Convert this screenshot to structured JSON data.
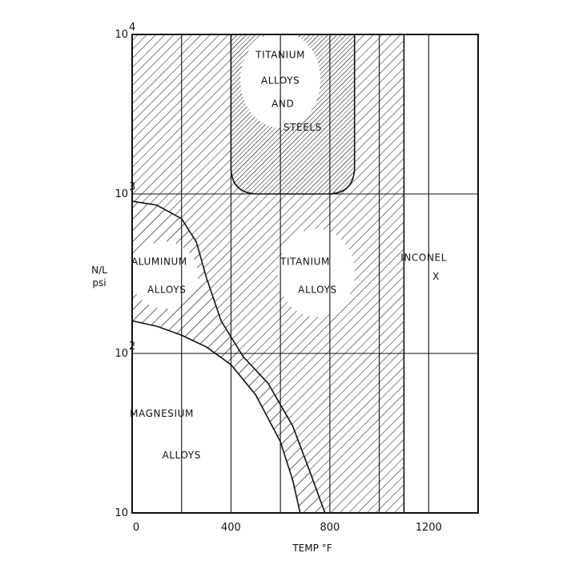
{
  "chart_data": {
    "type": "area",
    "xlabel": "TEMP °F",
    "ylabel_lines": [
      "N/L",
      "psi"
    ],
    "xlim": [
      0,
      1400
    ],
    "ylim": [
      10,
      10000
    ],
    "yscale": "log",
    "grid": true,
    "x_ticks": [
      {
        "value": 0,
        "label": "0"
      },
      {
        "value": 400,
        "label": "400"
      },
      {
        "value": 800,
        "label": "800"
      },
      {
        "value": 1200,
        "label": "1200"
      }
    ],
    "y_ticks": [
      {
        "value": 10,
        "base": "10",
        "exp": ""
      },
      {
        "value": 100,
        "base": "10",
        "exp": "2"
      },
      {
        "value": 1000,
        "base": "10",
        "exp": "3"
      },
      {
        "value": 10000,
        "base": "10",
        "exp": "4"
      }
    ],
    "x_gridlines": [
      200,
      400,
      600,
      800,
      1000,
      1100,
      1200
    ],
    "regions": [
      {
        "key": "magnesium",
        "label_lines": [
          "MAGNESIUM",
          "ALLOYS"
        ],
        "label_at": [
          [
            120,
            40
          ],
          [
            200,
            22
          ]
        ],
        "boundary": [
          [
            0,
            160
          ],
          [
            100,
            148
          ],
          [
            200,
            130
          ],
          [
            300,
            110
          ],
          [
            400,
            85
          ],
          [
            500,
            55
          ],
          [
            600,
            28
          ],
          [
            650,
            16
          ],
          [
            680,
            10
          ]
        ]
      },
      {
        "key": "aluminum",
        "label_lines": [
          "ALUMINUM",
          "ALLOYS"
        ],
        "label_at": [
          [
            110,
            360
          ],
          [
            140,
            240
          ]
        ],
        "boundary": [
          [
            0,
            900
          ],
          [
            100,
            850
          ],
          [
            200,
            700
          ],
          [
            260,
            500
          ],
          [
            300,
            300
          ],
          [
            360,
            160
          ],
          [
            450,
            95
          ],
          [
            550,
            65
          ],
          [
            650,
            35
          ],
          [
            720,
            18
          ],
          [
            780,
            10
          ]
        ]
      },
      {
        "key": "titanium",
        "label_lines": [
          "TITANIUM",
          "ALLOYS"
        ],
        "label_at": [
          [
            700,
            360
          ],
          [
            750,
            240
          ]
        ],
        "x_max": 1100
      },
      {
        "key": "titanium_steels",
        "label_lines": [
          "TITANIUM",
          "ALLOYS",
          "AND",
          "STEELS"
        ],
        "label_at": [
          [
            600,
            7100
          ],
          [
            600,
            4900
          ],
          [
            610,
            3500
          ],
          [
            690,
            2500
          ]
        ],
        "x_range": [
          400,
          900
        ],
        "y_min": 1000
      },
      {
        "key": "inconel",
        "label_lines": [
          "INCONEL",
          "X"
        ],
        "label_at": [
          [
            1180,
            380
          ],
          [
            1230,
            290
          ]
        ],
        "x_range": [
          1100,
          1400
        ]
      }
    ]
  }
}
